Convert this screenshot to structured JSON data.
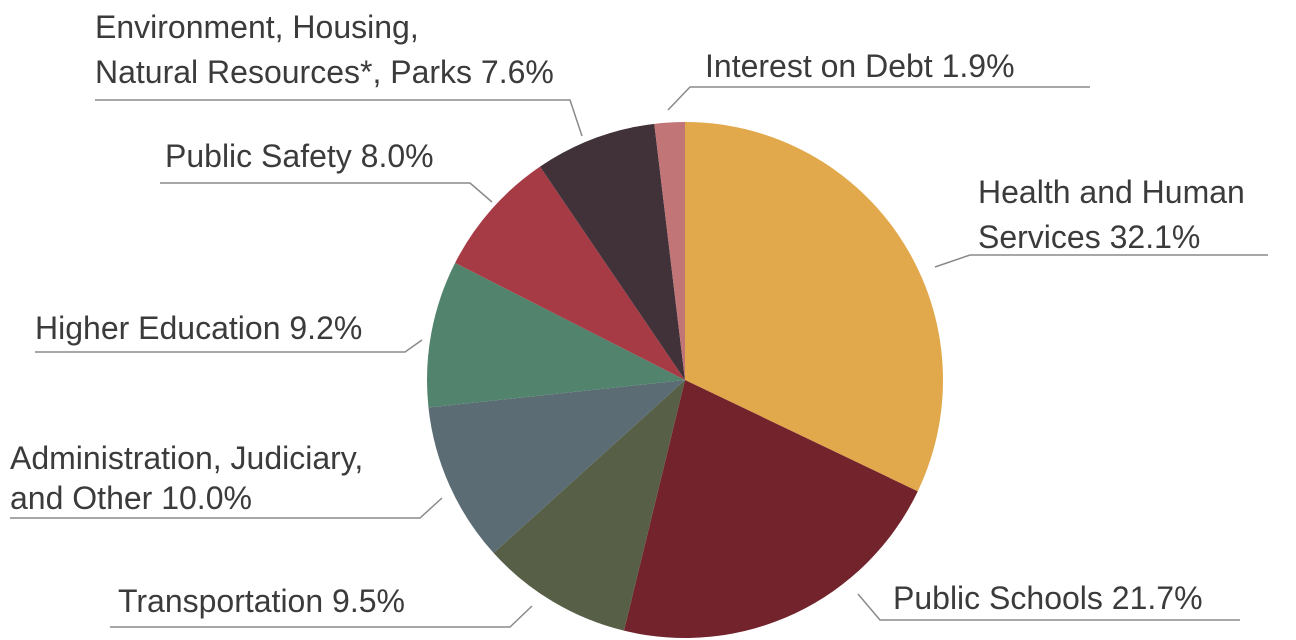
{
  "chart_data": {
    "type": "pie",
    "categories": [
      "Health and Human Services",
      "Public Schools",
      "Transportation",
      "Administration, Judiciary, and Other",
      "Higher Education",
      "Public Safety",
      "Environment, Housing, Natural Resources*, Parks",
      "Interest on Debt"
    ],
    "values": [
      32.1,
      21.7,
      9.5,
      10.0,
      9.2,
      8.0,
      7.6,
      1.9
    ],
    "value_labels": [
      "32.1%",
      "21.7%",
      "9.5%",
      "10.0%",
      "9.2%",
      "8.0%",
      "7.6%",
      "1.9%"
    ],
    "colors": [
      "#e2a84c",
      "#72232c",
      "#575f47",
      "#5b6c74",
      "#52846d",
      "#a63b45",
      "#41323a",
      "#c27577"
    ]
  }
}
